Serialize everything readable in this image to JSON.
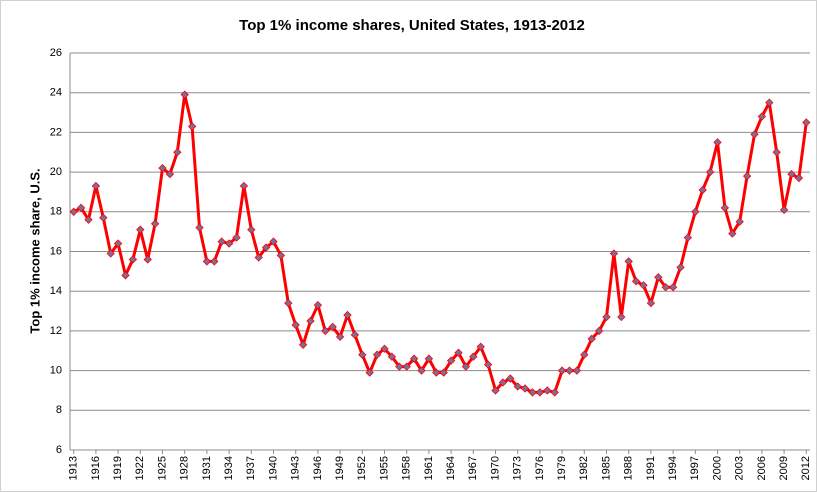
{
  "chart_data": {
    "type": "line",
    "title": "Top 1% income shares, United States, 1913-2012",
    "y_label": "Top 1% income share, U.S.",
    "categories": [
      "1913",
      null,
      null,
      "1916",
      null,
      null,
      "1919",
      null,
      null,
      "1922",
      null,
      null,
      "1925",
      null,
      null,
      "1928",
      null,
      null,
      "1931",
      null,
      null,
      "1934",
      null,
      null,
      "1937",
      null,
      null,
      "1940",
      null,
      null,
      "1943",
      null,
      null,
      "1946",
      null,
      null,
      "1949",
      null,
      null,
      "1952",
      null,
      null,
      "1955",
      null,
      null,
      "1958",
      null,
      null,
      "1961",
      null,
      null,
      "1964",
      null,
      null,
      "1967",
      null,
      null,
      "1970",
      null,
      null,
      "1973",
      null,
      null,
      "1976",
      null,
      null,
      "1979",
      null,
      null,
      "1982",
      null,
      null,
      "1985",
      null,
      null,
      "1988",
      null,
      null,
      "1991",
      null,
      null,
      "1994",
      null,
      null,
      "1997",
      null,
      null,
      "2000",
      null,
      null,
      "2003",
      null,
      null,
      "2006",
      null,
      null,
      "2009",
      null,
      null,
      "2012"
    ],
    "series": [
      {
        "name": "Top 1% income share",
        "color": "#ff0000",
        "marker_color": "#7a6f9b",
        "values": [
          18.0,
          18.2,
          17.6,
          19.3,
          17.7,
          15.9,
          16.4,
          14.8,
          15.6,
          17.1,
          15.6,
          17.4,
          20.2,
          19.9,
          21.0,
          23.9,
          22.3,
          17.2,
          15.5,
          15.5,
          16.5,
          16.4,
          16.7,
          19.3,
          17.1,
          15.7,
          16.2,
          16.5,
          15.8,
          13.4,
          12.3,
          11.3,
          12.5,
          13.3,
          12.0,
          12.2,
          11.7,
          12.8,
          11.8,
          10.8,
          9.9,
          10.8,
          11.1,
          10.7,
          10.2,
          10.2,
          10.6,
          10.0,
          10.6,
          9.9,
          9.9,
          10.5,
          10.9,
          10.2,
          10.7,
          11.2,
          10.3,
          9.0,
          9.4,
          9.6,
          9.2,
          9.1,
          8.9,
          8.9,
          9.0,
          8.9,
          10.0,
          10.0,
          10.0,
          10.8,
          11.6,
          12.0,
          12.7,
          15.9,
          12.7,
          15.5,
          14.5,
          14.3,
          13.4,
          14.7,
          14.2,
          14.2,
          15.2,
          16.7,
          18.0,
          19.1,
          20.0,
          21.5,
          18.2,
          16.9,
          17.5,
          19.8,
          21.9,
          22.8,
          23.5,
          21.0,
          18.1,
          19.9,
          19.7,
          22.5
        ]
      }
    ],
    "ylim": [
      6,
      26
    ],
    "yticks": [
      6,
      8,
      10,
      12,
      14,
      16,
      18,
      20,
      22,
      24,
      26
    ],
    "grid": true
  }
}
